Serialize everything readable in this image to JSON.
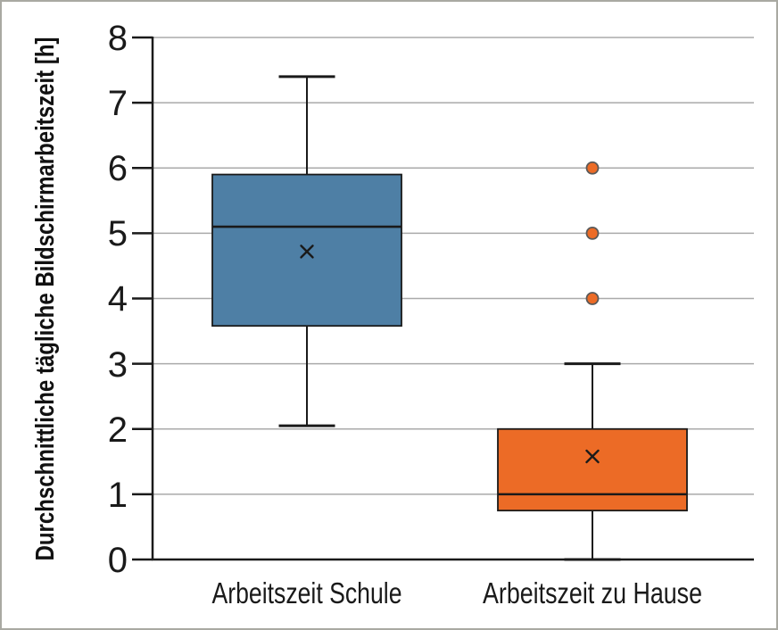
{
  "colors": {
    "line": "#1a1a1a",
    "gridline": "#aaaaaa",
    "outlier_stroke": "#595959",
    "frame_border": "#a9a9a2",
    "background": "#ffffff",
    "box_blue": "#4E7FA5",
    "box_orange": "#EC6B26"
  },
  "chart_data": {
    "type": "boxplot",
    "title": "",
    "xlabel": "",
    "ylabel": "Durchschnittliche tägliche Bildschirmarbeitszeit [h]",
    "ylim": [
      0,
      8
    ],
    "yticks": [
      "0",
      "1",
      "2",
      "3",
      "4",
      "5",
      "6",
      "7",
      "8"
    ],
    "grid": true,
    "legend": false,
    "mean_marker": "×",
    "series": [
      {
        "name": "Arbeitszeit Schule",
        "color": "#4E7FA5",
        "whisker_low": 2.05,
        "q1": 3.58,
        "median": 5.1,
        "mean": 4.72,
        "q3": 5.9,
        "whisker_high": 7.4,
        "outliers": []
      },
      {
        "name": "Arbeitszeit zu Hause",
        "color": "#EC6B26",
        "whisker_low": 0,
        "q1": 0.75,
        "median": 1.0,
        "mean": 1.58,
        "q3": 2.0,
        "whisker_high": 3.0,
        "outliers": [
          4,
          5,
          6
        ]
      }
    ]
  }
}
